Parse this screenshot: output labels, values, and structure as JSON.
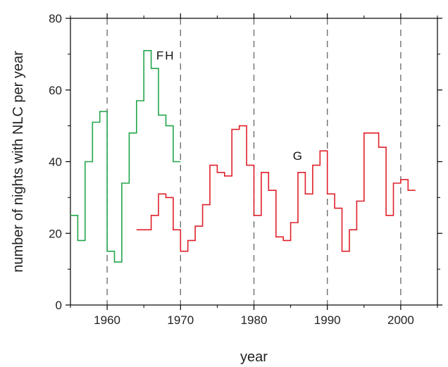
{
  "chart_data": {
    "type": "line",
    "step": true,
    "xlabel": "year",
    "ylabel": "number of nights with NLC per year",
    "xlim": [
      1955,
      2005
    ],
    "ylim": [
      0,
      80
    ],
    "x_ticks": [
      1960,
      1970,
      1980,
      1990,
      2000
    ],
    "y_ticks": [
      0,
      20,
      40,
      60,
      80
    ],
    "x_tick_labels": [
      "1960",
      "1970",
      "1980",
      "1990",
      "2000"
    ],
    "y_tick_labels": [
      "0",
      "20",
      "40",
      "60",
      "80"
    ],
    "vertical_dashed_lines_at": [
      1960,
      1970,
      1980,
      1990,
      2000
    ],
    "grid": false,
    "series": [
      {
        "name": "FH",
        "color": "#22a64a",
        "x": [
          1955,
          1956,
          1957,
          1958,
          1959,
          1960,
          1961,
          1962,
          1963,
          1964,
          1965,
          1966,
          1967,
          1968,
          1969
        ],
        "values": [
          25,
          18,
          40,
          51,
          54,
          15,
          12,
          34,
          48,
          57,
          71,
          66,
          53,
          50,
          40
        ]
      },
      {
        "name": "G",
        "color": "#e0202a",
        "x": [
          1964,
          1965,
          1966,
          1967,
          1968,
          1969,
          1970,
          1971,
          1972,
          1973,
          1974,
          1975,
          1976,
          1977,
          1978,
          1979,
          1980,
          1981,
          1982,
          1983,
          1984,
          1985,
          1986,
          1987,
          1988,
          1989,
          1990,
          1991,
          1992,
          1993,
          1994,
          1995,
          1996,
          1997,
          1998,
          1999,
          2000,
          2001
        ],
        "values": [
          21,
          21,
          25,
          31,
          30,
          21,
          15,
          18,
          22,
          28,
          39,
          37,
          36,
          49,
          50,
          39,
          25,
          37,
          32,
          19,
          18,
          23,
          37,
          31,
          39,
          43,
          31,
          27,
          15,
          21,
          29,
          48,
          48,
          44,
          25,
          34,
          35,
          32
        ]
      }
    ]
  }
}
